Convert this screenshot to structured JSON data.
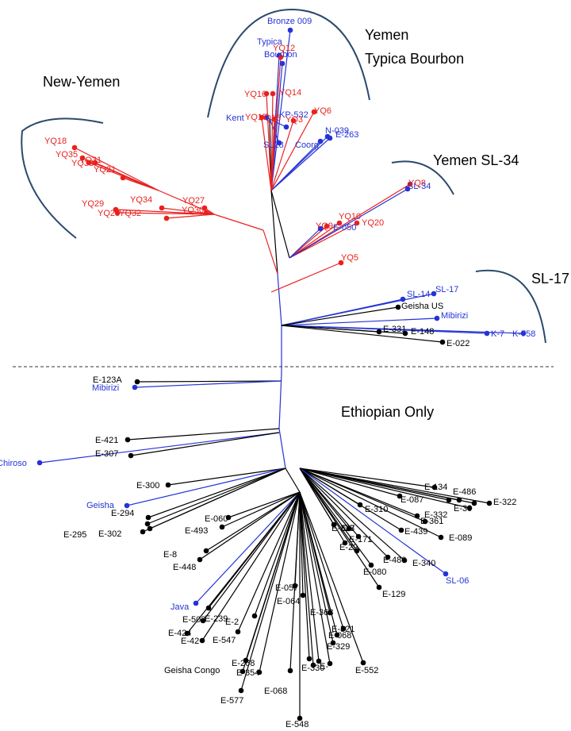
{
  "group_labels": {
    "yemen_typica_line1": "Yemen",
    "yemen_typica_line2": "Typica Bourbon",
    "new_yemen": "New-Yemen",
    "yemen_sl34": "Yemen SL-34",
    "sl17": "SL-17",
    "ethiopian_only": "Ethiopian Only"
  },
  "colors": {
    "ethiopian": "#000000",
    "yemen": "#e8211f",
    "cultivar": "#2433d6",
    "arc": "#2b4a6b"
  },
  "clusters": {
    "yemen_typica_bourbon": {
      "blue": [
        "Bronze 009",
        "Typica",
        "Bourbon",
        "Kent",
        "SL28",
        "N-039",
        "Coorg",
        "E-263",
        "KP-532"
      ],
      "red": [
        "YQ12",
        "YQ16",
        "YQ14",
        "YQ17",
        "YQ15",
        "YQ6",
        "YQ3"
      ]
    },
    "new_yemen": {
      "red": [
        "YQ18",
        "YQ35",
        "YQ33",
        "YQ21",
        "YQ31",
        "YQ29",
        "YQ34",
        "YQ27",
        "YQ28",
        "YQ30",
        "YQ32"
      ]
    },
    "yemen_sl34": {
      "red": [
        "YQ8",
        "YQ10",
        "YQ20",
        "YQ5",
        "YQ9"
      ],
      "blue": [
        "SL-34",
        "E-050"
      ]
    },
    "sl17": {
      "blue": [
        "SL-17",
        "SL-14",
        "Mibirizi",
        "K-7",
        "K-758"
      ],
      "black": [
        "Geisha US",
        "E-331",
        "E-148",
        "E-022"
      ]
    },
    "ethiopian_only": {
      "blue": [
        "Mibirizi",
        "Chiroso",
        "Geisha",
        "Java",
        "SL-06"
      ],
      "black": [
        "E-123A",
        "E-421",
        "E-307",
        "E-300",
        "E-294",
        "E-295",
        "E-060",
        "E-493",
        "E-448",
        "E-239",
        "E-502",
        "E-424",
        "E-42",
        "E-547",
        "E-268",
        "E-354",
        "Geisha Congo",
        "E-577",
        "E-068",
        "E-548",
        "E-057",
        "E-064",
        "E-368",
        "E-321",
        "E-068",
        "E-329",
        "E-330",
        "E-552",
        "E-134",
        "E-486",
        "E-322",
        "E-087",
        "E-310",
        "E-332",
        "E-361",
        "E-439",
        "E-089",
        "E-337",
        "E-171",
        "E-29",
        "E-480",
        "E-340",
        "E-080",
        "E-129"
      ]
    }
  }
}
